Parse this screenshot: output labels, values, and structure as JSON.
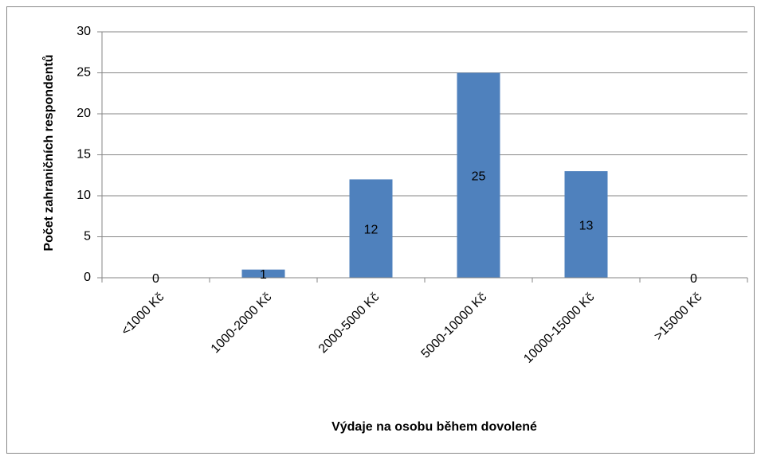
{
  "chart_data": {
    "type": "bar",
    "x_label": "Výdaje na osobu během dovolené",
    "y_label": "Počet zahraničních respondentů",
    "categories": [
      "<1000 Kč",
      "1000-2000 Kč",
      "2000-5000 Kč",
      "5000-10000 Kč",
      "10000-15000 Kč",
      ">15000 Kč"
    ],
    "values": [
      0,
      1,
      12,
      25,
      13,
      0
    ],
    "color": "#4f81bd",
    "ylim": [
      0,
      30
    ],
    "yticks": [
      0,
      5,
      10,
      15,
      20,
      25,
      30
    ],
    "grid": true
  }
}
